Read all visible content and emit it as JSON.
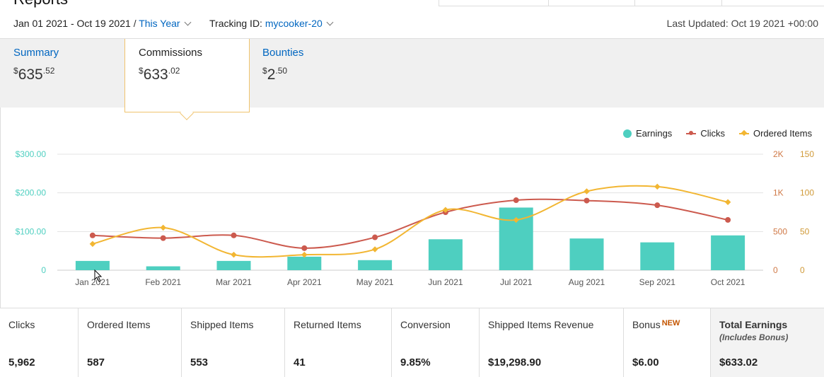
{
  "page": {
    "heading": "Reports"
  },
  "filters": {
    "date_range": "Jan 01 2021 - Oct 19 2021",
    "separator": "/",
    "period": "This Year",
    "tracking_label": "Tracking ID:",
    "tracking_id": "mycooker-20",
    "last_updated": "Last Updated: Oct 19 2021 +00:00"
  },
  "tabs": [
    {
      "label": "Summary",
      "currency": "$",
      "whole": "635",
      "cents": ".52"
    },
    {
      "label": "Commissions",
      "currency": "$",
      "whole": "633",
      "cents": ".02"
    },
    {
      "label": "Bounties",
      "currency": "$",
      "whole": "2",
      "cents": ".50"
    }
  ],
  "chart_data": {
    "type": "bar+line",
    "categories": [
      "Jan 2021",
      "Feb 2021",
      "Mar 2021",
      "Apr 2021",
      "May 2021",
      "Jun 2021",
      "Jul 2021",
      "Aug 2021",
      "Sep 2021",
      "Oct 2021"
    ],
    "series": [
      {
        "name": "Earnings",
        "type": "bar",
        "axis": "left",
        "color": "#4ecfc0",
        "values": [
          24,
          10,
          24,
          35,
          26,
          80,
          162,
          82,
          72,
          90
        ]
      },
      {
        "name": "Clicks",
        "type": "line",
        "axis": "right1",
        "color": "#cc5a4e",
        "values": [
          450,
          415,
          450,
          285,
          425,
          750,
          905,
          900,
          840,
          650
        ]
      },
      {
        "name": "Ordered Items",
        "type": "line",
        "axis": "right2",
        "color": "#f2b632",
        "values": [
          34,
          55,
          20,
          20,
          27,
          78,
          65,
          102,
          108,
          88
        ]
      }
    ],
    "y_left": {
      "ticks": [
        "$300.00",
        "$200.00",
        "$100.00",
        "0"
      ],
      "range": [
        0,
        300
      ]
    },
    "y_right1": {
      "ticks": [
        "2K",
        "1K",
        "500",
        "0"
      ],
      "range": [
        0,
        1500
      ]
    },
    "y_right2": {
      "ticks": [
        "150",
        "100",
        "50",
        "0"
      ],
      "range": [
        0,
        150
      ]
    },
    "legend_position": "top-right"
  },
  "stats": [
    {
      "label": "Clicks",
      "value": "5,962"
    },
    {
      "label": "Ordered Items",
      "value": "587"
    },
    {
      "label": "Shipped Items",
      "value": "553"
    },
    {
      "label": "Returned Items",
      "value": "41"
    },
    {
      "label": "Conversion",
      "value": "9.85%"
    },
    {
      "label": "Shipped Items Revenue",
      "value": "$19,298.90"
    },
    {
      "label": "Bonus",
      "badge": "NEW",
      "value": "$6.00"
    },
    {
      "label": "Total Earnings",
      "sub": "(Includes Bonus)",
      "value": "$633.02"
    }
  ]
}
